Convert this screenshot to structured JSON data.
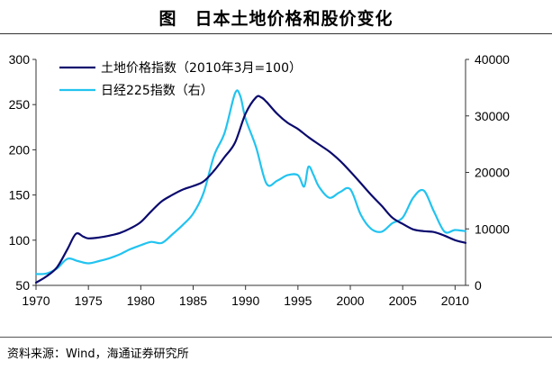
{
  "title": "图　日本土地价格和股价变化",
  "source": "资料来源：Wind，海通证券研究所",
  "chart_data": {
    "type": "line",
    "title": "图　日本土地价格和股价变化",
    "xlabel": "",
    "ylabel_left": "",
    "ylabel_right": "",
    "xlim": [
      1970,
      2011
    ],
    "ylim_left": [
      50,
      300
    ],
    "ylim_right": [
      0,
      40000
    ],
    "x_ticks": [
      1970,
      1975,
      1980,
      1985,
      1990,
      1995,
      2000,
      2005,
      2010
    ],
    "y_left_ticks": [
      50,
      100,
      150,
      200,
      250,
      300
    ],
    "y_right_ticks": [
      0,
      10000,
      20000,
      30000,
      40000
    ],
    "grid": false,
    "legend_position": "top-left",
    "series": [
      {
        "name": "土地价格指数（2010年3月=100）",
        "axis": "left",
        "color": "#0a0a6e",
        "points": [
          [
            1970,
            53
          ],
          [
            1971,
            60
          ],
          [
            1972,
            70
          ],
          [
            1973,
            90
          ],
          [
            1973.8,
            107
          ],
          [
            1974.5,
            104
          ],
          [
            1975,
            102
          ],
          [
            1976,
            103
          ],
          [
            1977,
            105
          ],
          [
            1978,
            108
          ],
          [
            1979,
            113
          ],
          [
            1980,
            120
          ],
          [
            1981,
            132
          ],
          [
            1982,
            143
          ],
          [
            1983,
            150
          ],
          [
            1984,
            156
          ],
          [
            1985,
            160
          ],
          [
            1986,
            165
          ],
          [
            1987,
            177
          ],
          [
            1988,
            192
          ],
          [
            1989,
            208
          ],
          [
            1990,
            240
          ],
          [
            1991,
            258
          ],
          [
            1991.5,
            258
          ],
          [
            1992,
            253
          ],
          [
            1993,
            240
          ],
          [
            1994,
            230
          ],
          [
            1995,
            223
          ],
          [
            1996,
            214
          ],
          [
            1997,
            206
          ],
          [
            1998,
            198
          ],
          [
            1999,
            188
          ],
          [
            2000,
            176
          ],
          [
            2001,
            163
          ],
          [
            2002,
            150
          ],
          [
            2003,
            138
          ],
          [
            2004,
            125
          ],
          [
            2005,
            118
          ],
          [
            2006,
            112
          ],
          [
            2007,
            110
          ],
          [
            2008,
            109
          ],
          [
            2009,
            105
          ],
          [
            2010,
            100
          ],
          [
            2011,
            97
          ]
        ]
      },
      {
        "name": "日经225指数（右）",
        "axis": "right",
        "color": "#22c3f0",
        "points": [
          [
            1970,
            2000
          ],
          [
            1971,
            2100
          ],
          [
            1972,
            3000
          ],
          [
            1973,
            4700
          ],
          [
            1974,
            4300
          ],
          [
            1975,
            3900
          ],
          [
            1976,
            4300
          ],
          [
            1977,
            4800
          ],
          [
            1978,
            5500
          ],
          [
            1979,
            6400
          ],
          [
            1980,
            7100
          ],
          [
            1981,
            7700
          ],
          [
            1982,
            7500
          ],
          [
            1983,
            9000
          ],
          [
            1984,
            10700
          ],
          [
            1985,
            12700
          ],
          [
            1986,
            16400
          ],
          [
            1987,
            23000
          ],
          [
            1988,
            27000
          ],
          [
            1989,
            34000
          ],
          [
            1989.5,
            33500
          ],
          [
            1990,
            29500
          ],
          [
            1991,
            24500
          ],
          [
            1992,
            18000
          ],
          [
            1993,
            18500
          ],
          [
            1994,
            19500
          ],
          [
            1995,
            19500
          ],
          [
            1995.6,
            17500
          ],
          [
            1996,
            21000
          ],
          [
            1996.5,
            19500
          ],
          [
            1997,
            17500
          ],
          [
            1998,
            15500
          ],
          [
            1999,
            16500
          ],
          [
            2000,
            17000
          ],
          [
            2001,
            12500
          ],
          [
            2002,
            10000
          ],
          [
            2003,
            9500
          ],
          [
            2004,
            11000
          ],
          [
            2005,
            12000
          ],
          [
            2006,
            15500
          ],
          [
            2007,
            16800
          ],
          [
            2008,
            13000
          ],
          [
            2009,
            9500
          ],
          [
            2010,
            9800
          ],
          [
            2011,
            9600
          ]
        ]
      }
    ]
  }
}
